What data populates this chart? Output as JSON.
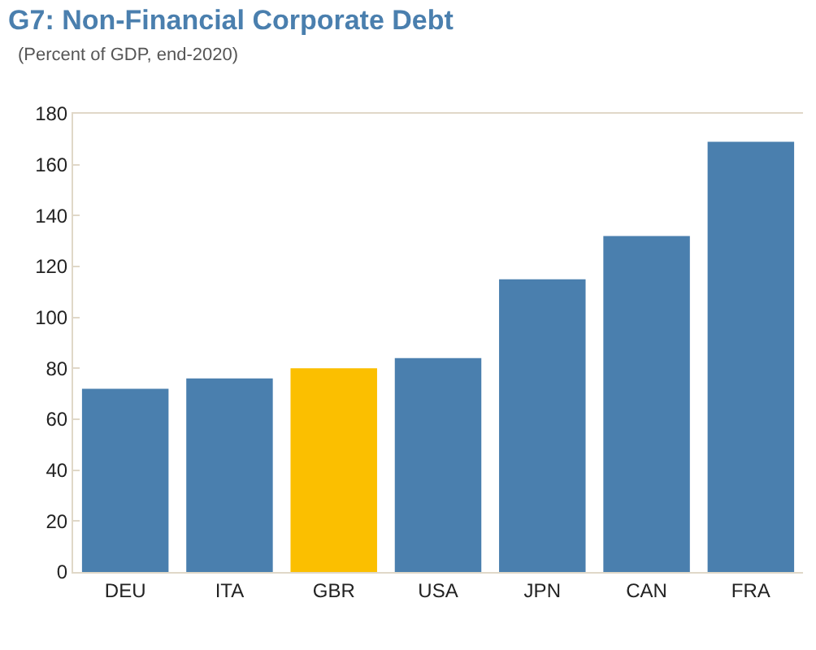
{
  "chart_data": {
    "type": "bar",
    "title": "G7: Non-Financial Corporate Debt",
    "subtitle": "(Percent of GDP, end-2020)",
    "categories": [
      "DEU",
      "ITA",
      "GBR",
      "USA",
      "JPN",
      "CAN",
      "FRA"
    ],
    "values": [
      72,
      76,
      80,
      84,
      115,
      132,
      169
    ],
    "colors": [
      "#4a7fae",
      "#4a7fae",
      "#fbbf00",
      "#4a7fae",
      "#4a7fae",
      "#4a7fae",
      "#4a7fae"
    ],
    "ylim": [
      0,
      180
    ],
    "yticks": [
      0,
      20,
      40,
      60,
      80,
      100,
      120,
      140,
      160,
      180
    ],
    "grid": false
  }
}
